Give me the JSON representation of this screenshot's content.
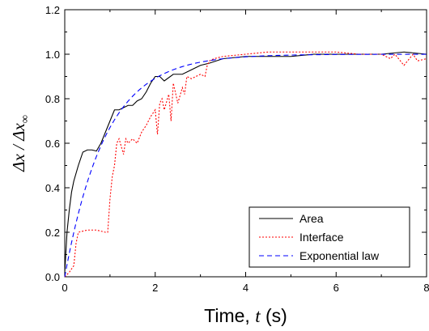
{
  "chart_data": {
    "type": "line",
    "title": "",
    "xlabel": {
      "prefix": "Time, ",
      "var": "t",
      "suffix": " (s)"
    },
    "ylabel": {
      "num": "Δx",
      "den": "Δx",
      "sub": "∞"
    },
    "xlim": [
      0,
      8
    ],
    "ylim": [
      0,
      1.2
    ],
    "xticks": [
      "0",
      "2",
      "4",
      "6",
      "8"
    ],
    "yticks": [
      "0.0",
      "0.2",
      "0.4",
      "0.6",
      "0.8",
      "1.0",
      "1.2"
    ],
    "grid": false,
    "legend_position": "bottom-right",
    "series": [
      {
        "name": "Area",
        "color": "#000000",
        "dash": "solid",
        "x": [
          0,
          0.05,
          0.1,
          0.15,
          0.2,
          0.3,
          0.4,
          0.5,
          0.6,
          0.7,
          0.8,
          0.9,
          1.0,
          1.1,
          1.2,
          1.3,
          1.4,
          1.5,
          1.6,
          1.7,
          1.8,
          1.9,
          2.0,
          2.1,
          2.2,
          2.4,
          2.6,
          2.8,
          3.0,
          3.2,
          3.5,
          4.0,
          4.5,
          5.0,
          5.5,
          6.0,
          6.5,
          7.0,
          7.5,
          8.0
        ],
        "y": [
          0.02,
          0.2,
          0.3,
          0.38,
          0.43,
          0.5,
          0.56,
          0.57,
          0.57,
          0.565,
          0.6,
          0.65,
          0.7,
          0.75,
          0.75,
          0.76,
          0.77,
          0.77,
          0.79,
          0.8,
          0.83,
          0.87,
          0.9,
          0.9,
          0.88,
          0.91,
          0.91,
          0.93,
          0.95,
          0.96,
          0.98,
          0.99,
          0.99,
          0.99,
          1.0,
          1.0,
          1.0,
          1.0,
          1.01,
          1.0
        ]
      },
      {
        "name": "Interface",
        "color": "#ff0000",
        "dash": "dotted",
        "x": [
          0,
          0.1,
          0.2,
          0.25,
          0.3,
          0.5,
          0.7,
          0.9,
          0.95,
          1.0,
          1.05,
          1.1,
          1.15,
          1.2,
          1.3,
          1.35,
          1.4,
          1.5,
          1.6,
          1.7,
          1.8,
          1.9,
          2.0,
          2.05,
          2.1,
          2.15,
          2.2,
          2.3,
          2.35,
          2.4,
          2.5,
          2.6,
          2.65,
          2.7,
          2.8,
          2.9,
          3.0,
          3.1,
          3.15,
          3.2,
          3.3,
          3.5,
          4.0,
          4.5,
          5.0,
          5.5,
          6.0,
          6.5,
          7.0,
          7.2,
          7.3,
          7.5,
          7.7,
          7.8,
          8.0
        ],
        "y": [
          0.0,
          0.02,
          0.05,
          0.15,
          0.2,
          0.21,
          0.21,
          0.2,
          0.2,
          0.35,
          0.45,
          0.5,
          0.6,
          0.62,
          0.55,
          0.62,
          0.6,
          0.62,
          0.6,
          0.65,
          0.68,
          0.72,
          0.75,
          0.64,
          0.78,
          0.8,
          0.75,
          0.82,
          0.7,
          0.87,
          0.78,
          0.85,
          0.82,
          0.9,
          0.89,
          0.9,
          0.91,
          0.9,
          0.95,
          0.97,
          0.98,
          0.99,
          1.0,
          1.01,
          1.01,
          1.01,
          1.01,
          1.0,
          1.0,
          0.98,
          1.0,
          0.95,
          1.0,
          0.97,
          0.98
        ]
      },
      {
        "name": "Exponential law",
        "color": "#0000ff",
        "dash": "dashed",
        "function": "1 - exp(-t/0.9)"
      }
    ]
  }
}
